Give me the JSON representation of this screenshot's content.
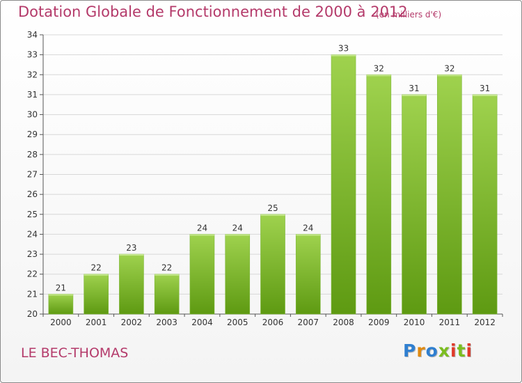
{
  "header": {
    "title": "Dotation Globale de Fonctionnement de 2000 à 2012",
    "unit": "(en milliers d'€)"
  },
  "footer": {
    "commune": "LE BEC-THOMAS",
    "brand": "Proxiti",
    "brand_colors": [
      "#2f7fd0",
      "#e08a10",
      "#2f7fd0",
      "#7bbd1f",
      "#e03a2a",
      "#7bbd1f",
      "#e03a2a"
    ]
  },
  "colors": {
    "title": "#b43a6a",
    "bar_light": "#9fd24e",
    "bar_dark": "#5e9a12",
    "grid": "#d8d8d8"
  },
  "chart_data": {
    "type": "bar",
    "title": "Dotation Globale de Fonctionnement de 2000 à 2012",
    "subtitle": "(en milliers d'€)",
    "xlabel": "",
    "ylabel": "",
    "categories": [
      "2000",
      "2001",
      "2002",
      "2003",
      "2004",
      "2005",
      "2006",
      "2007",
      "2008",
      "2009",
      "2010",
      "2011",
      "2012"
    ],
    "values": [
      21,
      22,
      23,
      22,
      24,
      24,
      25,
      24,
      33,
      32,
      31,
      32,
      31
    ],
    "ylim": [
      20,
      34
    ],
    "yticks": [
      20,
      21,
      22,
      23,
      24,
      25,
      26,
      27,
      28,
      29,
      30,
      31,
      32,
      33,
      34
    ],
    "grid": true,
    "data_labels": true
  }
}
